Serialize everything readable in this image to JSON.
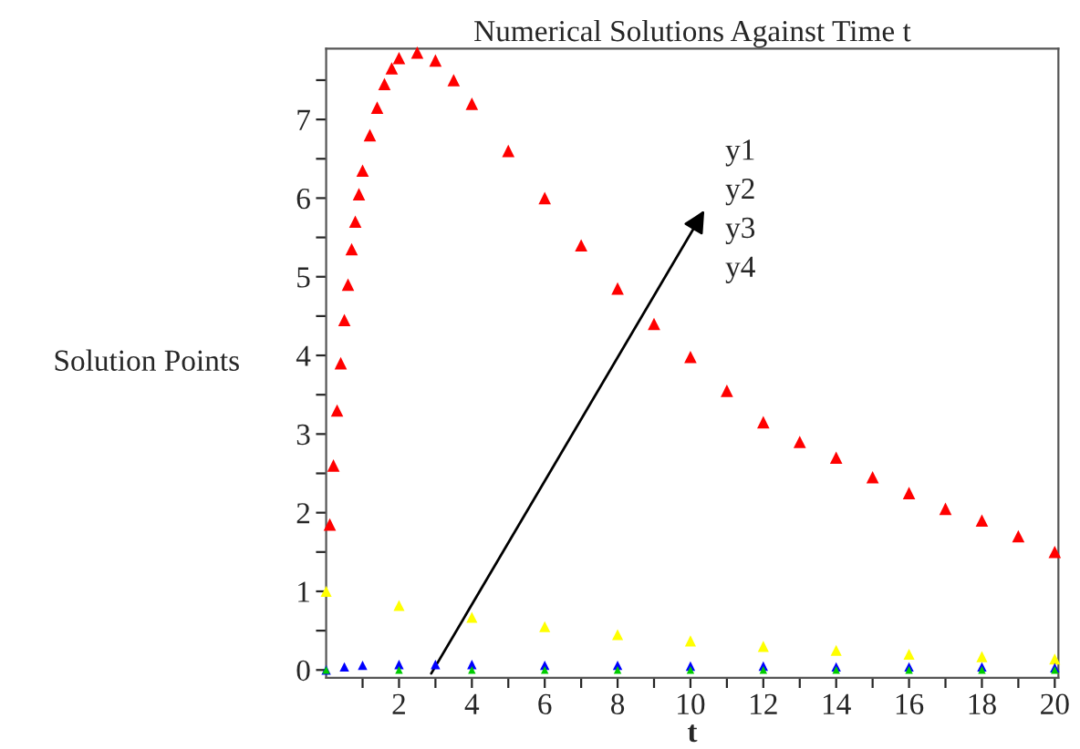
{
  "chart_data": {
    "type": "scatter",
    "title": "Numerical Solutions Against Time t",
    "xlabel": "t",
    "ylabel": "Solution Points",
    "annotations": [
      "y1",
      "y2",
      "y3",
      "y4"
    ],
    "marker": "triangle",
    "series": [
      {
        "color": "#ff0000",
        "x": [
          0.1,
          0.2,
          0.3,
          0.4,
          0.5,
          0.6,
          0.7,
          0.8,
          0.9,
          1.0,
          1.2,
          1.4,
          1.6,
          1.8,
          2.0,
          2.5,
          3,
          3.5,
          4,
          5,
          6,
          7,
          8,
          9,
          10,
          11,
          12,
          13,
          14,
          15,
          16,
          17,
          18,
          19,
          20
        ],
        "values": [
          1.85,
          2.6,
          3.3,
          3.9,
          4.45,
          4.9,
          5.35,
          5.7,
          6.05,
          6.35,
          6.8,
          7.15,
          7.45,
          7.65,
          7.78,
          7.85,
          7.75,
          7.5,
          7.2,
          6.6,
          6.0,
          5.4,
          4.85,
          4.4,
          3.98,
          3.55,
          3.15,
          2.9,
          2.7,
          2.45,
          2.25,
          2.05,
          1.9,
          1.7,
          1.5
        ]
      },
      {
        "color": "#ffff00",
        "x": [
          0,
          2,
          4,
          6,
          8,
          10,
          12,
          14,
          16,
          18,
          20
        ],
        "values": [
          1.0,
          0.82,
          0.67,
          0.55,
          0.45,
          0.37,
          0.3,
          0.25,
          0.2,
          0.17,
          0.14
        ]
      },
      {
        "color": "#0000ff",
        "x": [
          0,
          0.5,
          1,
          2,
          3,
          4,
          6,
          8,
          10,
          12,
          14,
          16,
          18,
          20
        ],
        "values": [
          0.0,
          0.04,
          0.06,
          0.07,
          0.07,
          0.07,
          0.06,
          0.06,
          0.05,
          0.05,
          0.04,
          0.04,
          0.04,
          0.03
        ]
      },
      {
        "color": "#00cc00",
        "x": [
          0,
          2,
          4,
          6,
          8,
          10,
          12,
          14,
          16,
          18,
          20
        ],
        "values": [
          0.0,
          0.0,
          0.0,
          0.0,
          0.0,
          0.0,
          0.0,
          0.0,
          0.0,
          0.0,
          0.0
        ]
      }
    ],
    "xlim": [
      0,
      20.1
    ],
    "ylim": [
      -0.1,
      7.9
    ],
    "xticks": [
      {
        "value": 1,
        "label": null
      },
      2,
      {
        "value": 3,
        "label": null
      },
      4,
      {
        "value": 5,
        "label": null
      },
      6,
      {
        "value": 7,
        "label": null
      },
      8,
      {
        "value": 9,
        "label": null
      },
      10,
      {
        "value": 11,
        "label": null
      },
      12,
      {
        "value": 13,
        "label": null
      },
      14,
      {
        "value": 15,
        "label": null
      },
      16,
      {
        "value": 17,
        "label": null
      },
      18,
      {
        "value": 19,
        "label": null
      },
      20
    ],
    "yticks": [
      0,
      {
        "value": 0.5,
        "label": null
      },
      1,
      {
        "value": 1.5,
        "label": null
      },
      2,
      {
        "value": 2.5,
        "label": null
      },
      3,
      {
        "value": 3.5,
        "label": null
      },
      4,
      {
        "value": 4.5,
        "label": null
      },
      5,
      {
        "value": 5.5,
        "label": null
      },
      6,
      {
        "value": 6.5,
        "label": null
      },
      7,
      {
        "value": 7.5,
        "label": null
      }
    ],
    "grid": false,
    "legend": false
  }
}
